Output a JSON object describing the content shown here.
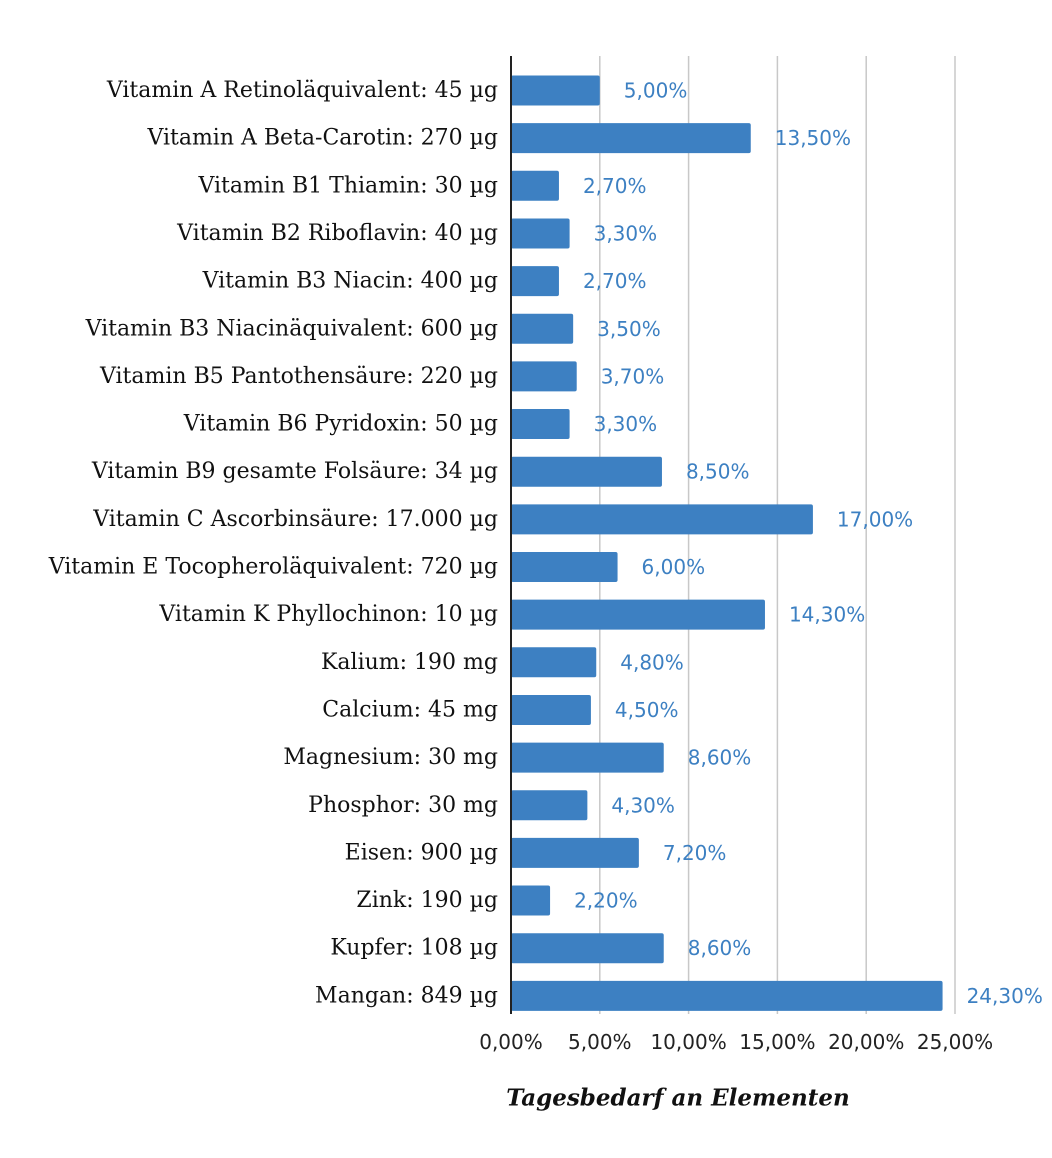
{
  "colors": {
    "bar": "#3d80c2",
    "value_label": "#3d80c2",
    "grid": "#c8c8c8",
    "axis": "#222222"
  },
  "chart_data": {
    "type": "bar",
    "orientation": "horizontal",
    "categories": [
      "Vitamin A Retinoläquivalent: 45 µg",
      "Vitamin A Beta-Carotin: 270 µg",
      "Vitamin B1 Thiamin: 30 µg",
      "Vitamin B2 Riboflavin: 40 µg",
      "Vitamin B3 Niacin: 400 µg",
      "Vitamin B3 Niacinäquivalent: 600 µg",
      "Vitamin B5 Pantothensäure: 220 µg",
      "Vitamin B6 Pyridoxin: 50 µg",
      "Vitamin B9 gesamte Folsäure: 34 µg",
      "Vitamin C Ascorbinsäure: 17.000 µg",
      "Vitamin E Tocopheroläquivalent: 720 µg",
      "Vitamin K Phyllochinon: 10 µg",
      "Kalium: 190 mg",
      "Calcium: 45 mg",
      "Magnesium: 30 mg",
      "Phosphor: 30 mg",
      "Eisen: 900 µg",
      "Zink: 190 µg",
      "Kupfer: 108 µg",
      "Mangan: 849 µg"
    ],
    "values": [
      5.0,
      13.5,
      2.7,
      3.3,
      2.7,
      3.5,
      3.7,
      3.3,
      8.5,
      17.0,
      6.0,
      14.3,
      4.8,
      4.5,
      8.6,
      4.3,
      7.2,
      2.2,
      8.6,
      24.3
    ],
    "value_labels": [
      "5,00%",
      "13,50%",
      "2,70%",
      "3,30%",
      "2,70%",
      "3,50%",
      "3,70%",
      "3,30%",
      "8,50%",
      "17,00%",
      "6,00%",
      "14,30%",
      "4,80%",
      "4,50%",
      "8,60%",
      "4,30%",
      "7,20%",
      "2,20%",
      "8,60%",
      "24,30%"
    ],
    "xlim": [
      0,
      25
    ],
    "xticks": [
      0,
      5,
      10,
      15,
      20,
      25
    ],
    "xtick_labels": [
      "0,00%",
      "5,00%",
      "10,00%",
      "15,00%",
      "20,00%",
      "25,00%"
    ],
    "xlabel": "Tagesbedarf an Elementen",
    "grid": "vertical",
    "legend": "none"
  }
}
